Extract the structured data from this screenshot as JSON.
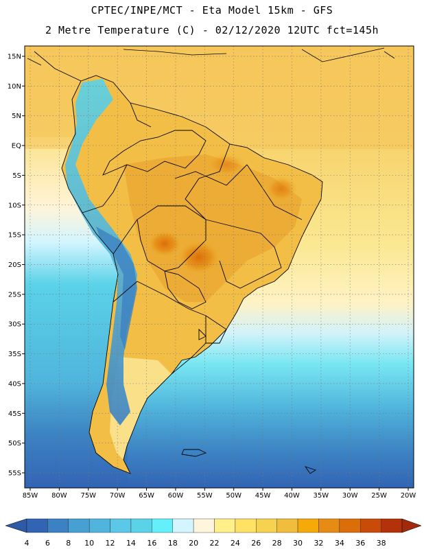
{
  "header": {
    "title_line1": "CPTEC/INPE/MCT -  Eta Model 15km - GFS",
    "title_line2": "2 Metre Temperature (C) - 02/12/2020 12UTC fct=145h"
  },
  "map": {
    "latitude_labels": [
      "15N",
      "10N",
      "5N",
      "EQ",
      "5S",
      "10S",
      "15S",
      "20S",
      "25S",
      "30S",
      "35S",
      "40S",
      "45S",
      "50S",
      "55S"
    ],
    "longitude_labels": [
      "85W",
      "80W",
      "75W",
      "70W",
      "65W",
      "60W",
      "55W",
      "50W",
      "45W",
      "40W",
      "35W",
      "30W",
      "25W",
      "20W"
    ],
    "lat_range": [
      15,
      -55
    ],
    "lon_range": [
      -85,
      -20
    ]
  },
  "colorbar": {
    "unit": "C",
    "labels": [
      "4",
      "6",
      "8",
      "10",
      "12",
      "14",
      "16",
      "18",
      "20",
      "22",
      "24",
      "26",
      "28",
      "30",
      "32",
      "34",
      "36",
      "38"
    ],
    "colors": [
      "#3264b4",
      "#3c82c3",
      "#46a0d2",
      "#50b4dc",
      "#5ac8e6",
      "#5ad2e8",
      "#64f0fa",
      "#d2f5ff",
      "#fff5dc",
      "#fff08c",
      "#ffe164",
      "#f5d250",
      "#f0be3c",
      "#f5aa0a",
      "#e68c14",
      "#dc6e0a",
      "#c84b0a",
      "#b4320a"
    ]
  }
}
